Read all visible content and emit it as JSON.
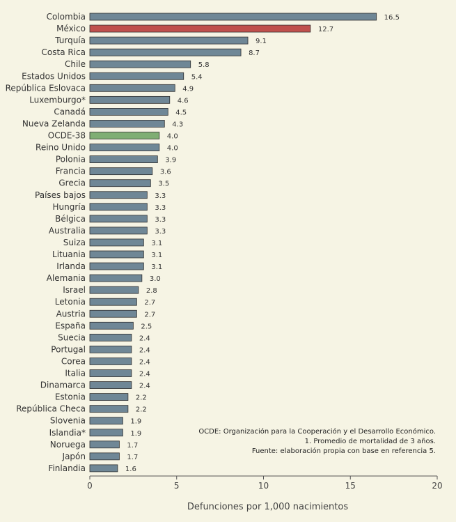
{
  "chart_data": {
    "type": "bar",
    "orientation": "horizontal",
    "categories": [
      "Colombia",
      "México",
      "Turquía",
      "Costa Rica",
      "Chile",
      "Estados Unidos",
      "República Eslovaca",
      "Luxemburgo*",
      "Canadá",
      "Nueva Zelanda",
      "OCDE-38",
      "Reino Unido",
      "Polonia",
      "Francia",
      "Grecia",
      "Países bajos",
      "Hungría",
      "Bélgica",
      "Australia",
      "Suiza",
      "Lituania",
      "Irlanda",
      "Alemania",
      "Israel",
      "Letonia",
      "Austria",
      "España",
      "Suecia",
      "Portugal",
      "Corea",
      "Italia",
      "Dinamarca",
      "Estonia",
      "República Checa",
      "Slovenia",
      "Islandia*",
      "Noruega",
      "Japón",
      "Finlandia"
    ],
    "values": [
      16.5,
      12.7,
      9.1,
      8.7,
      5.8,
      5.4,
      4.9,
      4.6,
      4.5,
      4.3,
      4.0,
      4.0,
      3.9,
      3.6,
      3.5,
      3.3,
      3.3,
      3.3,
      3.3,
      3.1,
      3.1,
      3.1,
      3.0,
      2.8,
      2.7,
      2.7,
      2.5,
      2.4,
      2.4,
      2.4,
      2.4,
      2.4,
      2.2,
      2.2,
      1.9,
      1.9,
      1.7,
      1.7,
      1.6
    ],
    "value_labels": [
      "16.5",
      "12.7",
      "9.1",
      "8.7",
      "5.8",
      "5.4",
      "4.9",
      "4.6",
      "4.5",
      "4.3",
      "4.0",
      "4.0",
      "3.9",
      "3.6",
      "3.5",
      "3.3",
      "3.3",
      "3.3",
      "3.3",
      "3.1",
      "3.1",
      "3.1",
      "3.0",
      "2.8",
      "2.7",
      "2.7",
      "2.5",
      "2.4",
      "2.4",
      "2.4",
      "2.4",
      "2.4",
      "2.2",
      "2.2",
      "1.9",
      "1.9",
      "1.7",
      "1.7",
      "1.6"
    ],
    "highlights": {
      "México": "#c0504d",
      "OCDE-38": "#7fae74"
    },
    "default_color": "#6f8796",
    "xlabel": "Defunciones por 1,000 nacimientos",
    "xlim": [
      0,
      20
    ],
    "xticks": [
      "0",
      "5",
      "10",
      "15",
      "20"
    ],
    "notes": [
      "OCDE: Organización para la Cooperación y el Desarrollo Económico.",
      "1. Promedio de mortalidad de 3 años.",
      "Fuente: elaboración propia con base en referencia 5."
    ]
  }
}
